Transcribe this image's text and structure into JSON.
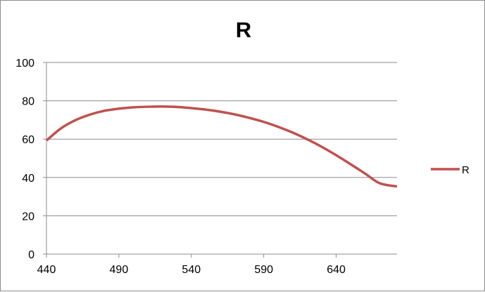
{
  "chart_data": {
    "type": "line",
    "title": "R",
    "xlabel": "",
    "ylabel": "",
    "xlim": [
      440,
      682
    ],
    "ylim": [
      0,
      100
    ],
    "x_ticks": [
      440,
      490,
      540,
      590,
      640
    ],
    "y_ticks": [
      0,
      20,
      40,
      60,
      80,
      100
    ],
    "grid": "horizontal",
    "legend": "right",
    "series": [
      {
        "name": "R",
        "color": "#c0504d",
        "x": [
          440,
          450,
          460,
          470,
          480,
          490,
          500,
          510,
          520,
          530,
          540,
          550,
          560,
          570,
          580,
          590,
          600,
          610,
          620,
          630,
          640,
          650,
          660,
          670,
          682
        ],
        "y": [
          59.3,
          65.6,
          69.9,
          72.8,
          74.8,
          75.9,
          76.6,
          76.9,
          77.0,
          76.8,
          76.2,
          75.4,
          74.3,
          72.9,
          71.1,
          69.0,
          66.4,
          63.4,
          59.9,
          56.0,
          51.6,
          46.9,
          42.0,
          37.0,
          35.3
        ]
      }
    ]
  }
}
